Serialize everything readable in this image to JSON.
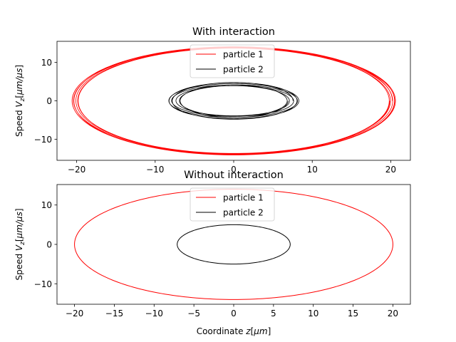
{
  "chart_data": [
    {
      "type": "line",
      "title": "With interaction",
      "xlabel": "",
      "ylabel": "Speed V_z[μm/μs]",
      "xlim": [
        -22.5,
        22.5
      ],
      "ylim": [
        -15.5,
        15.5
      ],
      "xticks": [
        -20,
        -10,
        0,
        10,
        20
      ],
      "yticks": [
        -10,
        0,
        10
      ],
      "legend": {
        "placement": "upper-center"
      },
      "series": [
        {
          "name": "particle 1",
          "color": "#ff0000",
          "shape": "ellipse",
          "z_amplitude": [
            19.8,
            20.6
          ],
          "v_amplitude": [
            13.7,
            14.1
          ],
          "turns": 7
        },
        {
          "name": "particle 2",
          "color": "#000000",
          "shape": "ellipse",
          "z_amplitude": [
            6.8,
            8.3
          ],
          "v_amplitude": [
            3.9,
            4.8
          ],
          "turns": 7
        }
      ]
    },
    {
      "type": "line",
      "title": "Without interaction",
      "xlabel": "Coordinate z[μm]",
      "ylabel": "Speed V_z[μm/μs]",
      "xlim": [
        -22.2,
        22.2
      ],
      "ylim": [
        -15.2,
        15.2
      ],
      "xticks": [
        -20,
        -15,
        -10,
        -5,
        0,
        5,
        10,
        15,
        20
      ],
      "yticks": [
        -10,
        0,
        10
      ],
      "legend": {
        "placement": "upper-center"
      },
      "series": [
        {
          "name": "particle 1",
          "color": "#ff0000",
          "shape": "ellipse",
          "z_amplitude": [
            20,
            20
          ],
          "v_amplitude": [
            14,
            14
          ],
          "turns": 1
        },
        {
          "name": "particle 2",
          "color": "#000000",
          "shape": "ellipse",
          "z_amplitude": [
            7.1,
            7.1
          ],
          "v_amplitude": [
            5,
            5
          ],
          "turns": 1
        }
      ]
    }
  ]
}
